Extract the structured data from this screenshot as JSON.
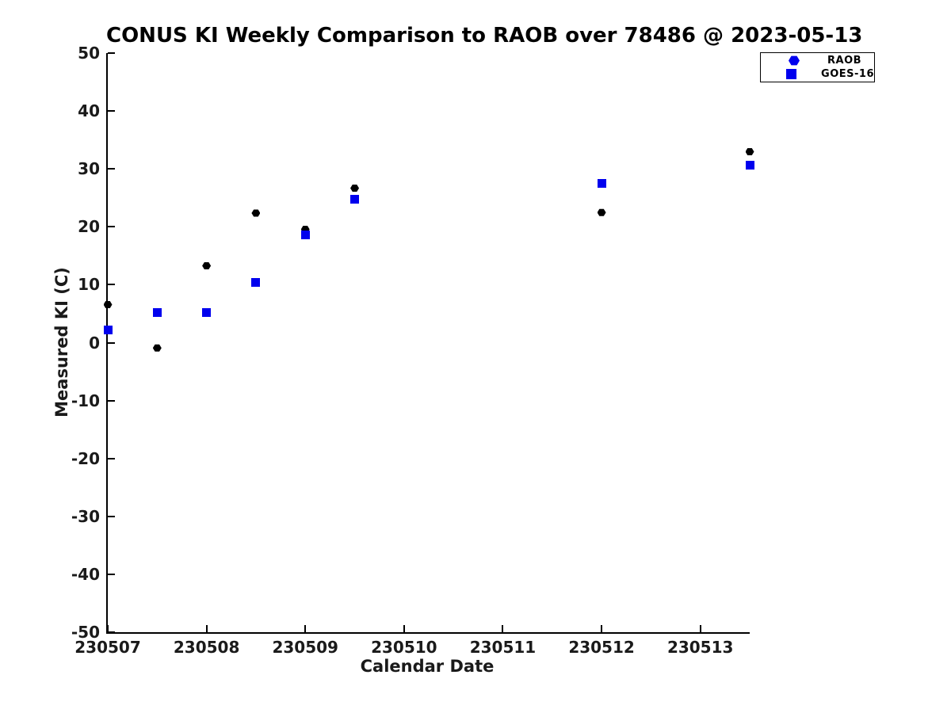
{
  "title": "CONUS KI Weekly Comparison to RAOB over 78486 @ 2023-05-13",
  "colors": {
    "raob_point": "#000000",
    "goes16_point": "#0000ee",
    "legend_marker": "#0000ee",
    "axis": "#000000",
    "tick_label": "#1a1a1a"
  },
  "legend": {
    "items": [
      {
        "label": "RAOB",
        "marker": "hexagon"
      },
      {
        "label": "GOES-16",
        "marker": "square"
      }
    ]
  },
  "chart_data": {
    "type": "scatter",
    "title": "CONUS KI Weekly Comparison to RAOB over 78486 @ 2023-05-13",
    "xlabel": "Calendar Date",
    "ylabel": "Measured KI (C)",
    "xlim": [
      230507,
      230513.5
    ],
    "ylim": [
      -50,
      50
    ],
    "x_ticks": [
      230507,
      230508,
      230509,
      230510,
      230511,
      230512,
      230513
    ],
    "x_tick_labels": [
      "230507",
      "230508",
      "230509",
      "230510",
      "230511",
      "230512",
      "230513"
    ],
    "y_ticks": [
      -50,
      -40,
      -30,
      -20,
      -10,
      0,
      10,
      20,
      30,
      40,
      50
    ],
    "y_tick_labels": [
      "-50",
      "-40",
      "-30",
      "-20",
      "-10",
      "0",
      "10",
      "20",
      "30",
      "40",
      "50"
    ],
    "grid": false,
    "legend_position": "top-right-outside",
    "series": [
      {
        "name": "RAOB",
        "marker": "hexagon",
        "color": "#000000",
        "points": [
          [
            230507.0,
            6.5
          ],
          [
            230507.5,
            -1.0
          ],
          [
            230508.0,
            13.2
          ],
          [
            230508.5,
            22.3
          ],
          [
            230509.0,
            19.5
          ],
          [
            230509.5,
            26.6
          ],
          [
            230512.0,
            22.4
          ],
          [
            230513.5,
            32.9
          ]
        ]
      },
      {
        "name": "GOES-16",
        "marker": "square",
        "color": "#0000ee",
        "points": [
          [
            230507.0,
            2.2
          ],
          [
            230507.5,
            5.2
          ],
          [
            230508.0,
            5.2
          ],
          [
            230508.5,
            10.4
          ],
          [
            230509.0,
            18.6
          ],
          [
            230509.5,
            24.7
          ],
          [
            230512.0,
            27.5
          ],
          [
            230513.5,
            30.6
          ]
        ]
      }
    ]
  }
}
